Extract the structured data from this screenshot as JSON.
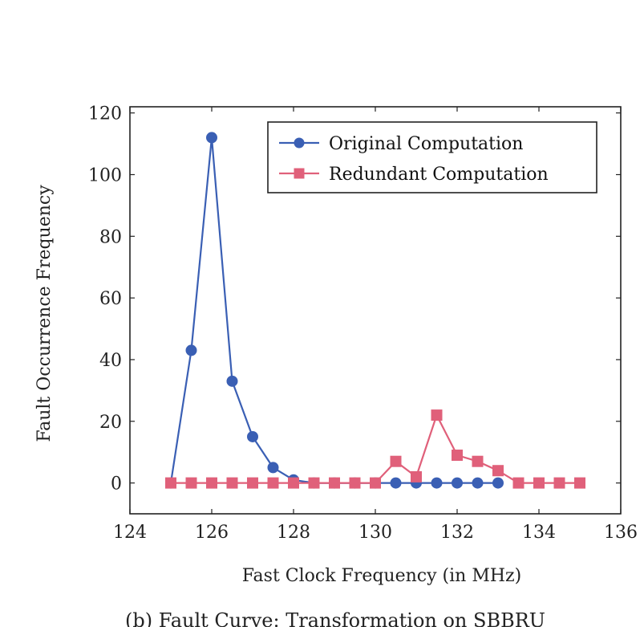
{
  "chart_data": {
    "type": "line",
    "title": "",
    "xlabel": "Fast Clock Frequency (in MHz)",
    "ylabel": "Fault Occurrence Frequency",
    "xlim": [
      124,
      136
    ],
    "ylim": [
      -10,
      122
    ],
    "xticks": [
      124,
      126,
      128,
      130,
      132,
      134,
      136
    ],
    "yticks": [
      0,
      20,
      40,
      60,
      80,
      100,
      120
    ],
    "legend_position": "top-right",
    "grid": false,
    "series": [
      {
        "name": "Original Computation",
        "color": "#3a5fb4",
        "marker": "circle",
        "points": [
          {
            "x": 125.0,
            "y": 0
          },
          {
            "x": 125.5,
            "y": 43
          },
          {
            "x": 126.0,
            "y": 112
          },
          {
            "x": 126.5,
            "y": 33
          },
          {
            "x": 127.0,
            "y": 15
          },
          {
            "x": 127.5,
            "y": 5
          },
          {
            "x": 128.0,
            "y": 1
          },
          {
            "x": 128.5,
            "y": 0
          },
          {
            "x": 129.0,
            "y": 0
          },
          {
            "x": 129.5,
            "y": 0
          },
          {
            "x": 130.0,
            "y": 0
          },
          {
            "x": 130.5,
            "y": 0
          },
          {
            "x": 131.0,
            "y": 0
          },
          {
            "x": 131.5,
            "y": 0
          },
          {
            "x": 132.0,
            "y": 0
          },
          {
            "x": 132.5,
            "y": 0
          },
          {
            "x": 133.0,
            "y": 0
          }
        ]
      },
      {
        "name": "Redundant Computation",
        "color": "#e0607a",
        "marker": "square",
        "points": [
          {
            "x": 125.0,
            "y": 0
          },
          {
            "x": 125.5,
            "y": 0
          },
          {
            "x": 126.0,
            "y": 0
          },
          {
            "x": 126.5,
            "y": 0
          },
          {
            "x": 127.0,
            "y": 0
          },
          {
            "x": 127.5,
            "y": 0
          },
          {
            "x": 128.0,
            "y": 0
          },
          {
            "x": 128.5,
            "y": 0
          },
          {
            "x": 129.0,
            "y": 0
          },
          {
            "x": 129.5,
            "y": 0
          },
          {
            "x": 130.0,
            "y": 0
          },
          {
            "x": 130.5,
            "y": 7
          },
          {
            "x": 131.0,
            "y": 2
          },
          {
            "x": 131.5,
            "y": 22
          },
          {
            "x": 132.0,
            "y": 9
          },
          {
            "x": 132.5,
            "y": 7
          },
          {
            "x": 133.0,
            "y": 4
          },
          {
            "x": 133.5,
            "y": 0
          },
          {
            "x": 134.0,
            "y": 0
          },
          {
            "x": 134.5,
            "y": 0
          },
          {
            "x": 135.0,
            "y": 0
          }
        ]
      }
    ]
  },
  "caption": "(b) Fault Curve: Transformation on SBBRU"
}
